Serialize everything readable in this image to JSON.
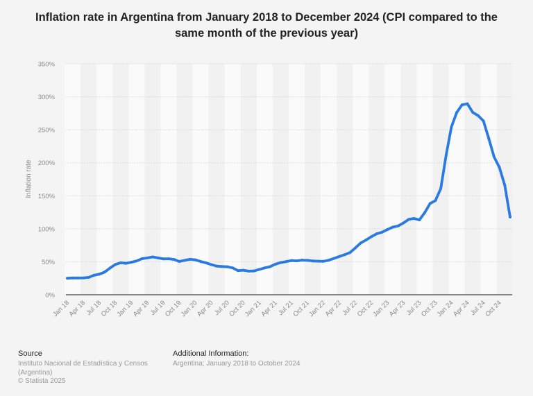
{
  "chart_data": {
    "type": "line",
    "title": "Inflation rate in Argentina from January 2018 to December 2024 (CPI compared to the same month of the previous year)",
    "xlabel": "",
    "ylabel": "Inflation rate",
    "ylim": [
      0,
      350
    ],
    "yticks": [
      "0%",
      "50%",
      "100%",
      "150%",
      "200%",
      "250%",
      "300%",
      "350%"
    ],
    "ytick_values": [
      0,
      50,
      100,
      150,
      200,
      250,
      300,
      350
    ],
    "xticks": [
      "Jan 18",
      "Apr 18",
      "Jul 18",
      "Oct 18",
      "Jan 19",
      "Apr 19",
      "Jul 19",
      "Oct 19",
      "Jan 20",
      "Apr 20",
      "Jul 20",
      "Oct 20",
      "Jan 21",
      "Apr 21",
      "Jul 21",
      "Oct 21",
      "Jan 22",
      "Apr 22",
      "Jul 22",
      "Oct 22",
      "Jan 23",
      "Apr 23",
      "Jul 23",
      "Oct 23",
      "Jan 24",
      "Apr 24",
      "Jul 24",
      "Oct 24"
    ],
    "grid": true,
    "line_color": "#2a7ae2",
    "x_start": "Jan 2018",
    "x_end": "Dec 2024",
    "series": [
      {
        "values": [
          25.0,
          25.4,
          25.4,
          25.5,
          26.3,
          29.5,
          31.2,
          34.4,
          40.5,
          45.9,
          48.5,
          47.6,
          49.3,
          51.3,
          54.7,
          55.8,
          57.3,
          55.8,
          54.4,
          54.5,
          53.5,
          50.5,
          52.1,
          53.8,
          52.9,
          50.3,
          48.4,
          45.6,
          43.4,
          42.8,
          42.4,
          40.7,
          36.6,
          37.2,
          35.8,
          36.1,
          38.5,
          40.7,
          42.6,
          46.3,
          48.8,
          50.2,
          51.8,
          51.4,
          52.5,
          52.1,
          51.2,
          50.9,
          50.7,
          52.3,
          55.1,
          58.0,
          60.7,
          64.0,
          71.0,
          78.5,
          83.0,
          88.0,
          92.4,
          94.8,
          98.8,
          102.5,
          104.3,
          108.8,
          114.2,
          115.6,
          113.4,
          124.4,
          138.3,
          142.7,
          160.9,
          211.4,
          254.2,
          276.2,
          287.9,
          289.4,
          276.4,
          271.5,
          263.4,
          236.7,
          209.0,
          193.0,
          166.0,
          117.8
        ]
      }
    ]
  },
  "footer": {
    "source_heading": "Source",
    "source_lines": [
      "Instituto Nacional de Estadística y Censos",
      "(Argentina)",
      "© Statista 2025"
    ],
    "info_heading": "Additional Information:",
    "info_text": "Argentina; January 2018 to October 2024"
  }
}
